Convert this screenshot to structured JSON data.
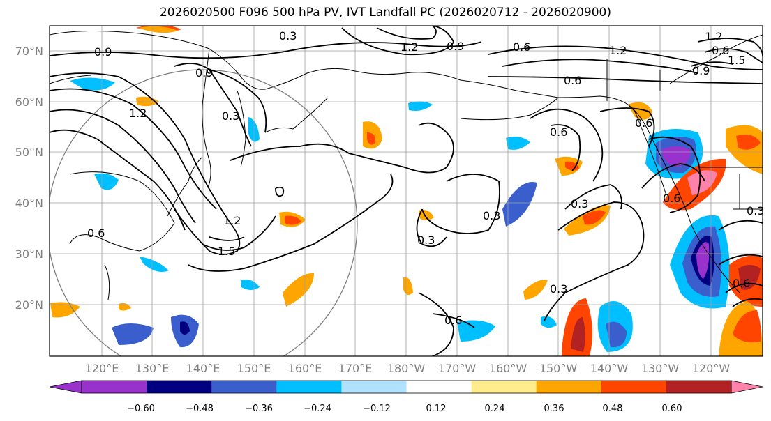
{
  "title": "2026020500 F096 500 hPa PV, IVT Landfall PC (2026020712 - 2026020900)",
  "latitude_labels": [
    "70°N",
    "60°N",
    "50°N",
    "40°N",
    "30°N",
    "20°N"
  ],
  "longitude_labels": [
    "120°E",
    "130°E",
    "140°E",
    "150°E",
    "160°E",
    "170°E",
    "180°W",
    "170°W",
    "160°W",
    "150°W",
    "140°W",
    "130°W",
    "120°W"
  ],
  "colorbar": {
    "tick_labels": [
      "−0.60",
      "−0.48",
      "−0.36",
      "−0.24",
      "−0.12",
      "0.12",
      "0.24",
      "0.36",
      "0.48",
      "0.60"
    ],
    "colors": [
      "#9932cc",
      "#000080",
      "#3a5fcd",
      "#00bfff",
      "#b0e2ff",
      "#ffffff",
      "#ffec8b",
      "#ffa500",
      "#ff4500",
      "#b22222",
      "#ff82ab",
      "#ff82ab"
    ]
  },
  "contour_labels": [
    "0.3",
    "1.2",
    "0.9",
    "0.6",
    "1.2",
    "0.6",
    "1.2",
    "0.9",
    "1.5",
    "0.9",
    "0.9",
    "0.6",
    "1.2",
    "0.3",
    "0.6",
    "1.2",
    "1.5",
    "0.3",
    "0.3",
    "0.6",
    "0.3",
    "0.3",
    "0.6",
    "0.6",
    "0.3",
    "0.6",
    "0.6"
  ]
}
